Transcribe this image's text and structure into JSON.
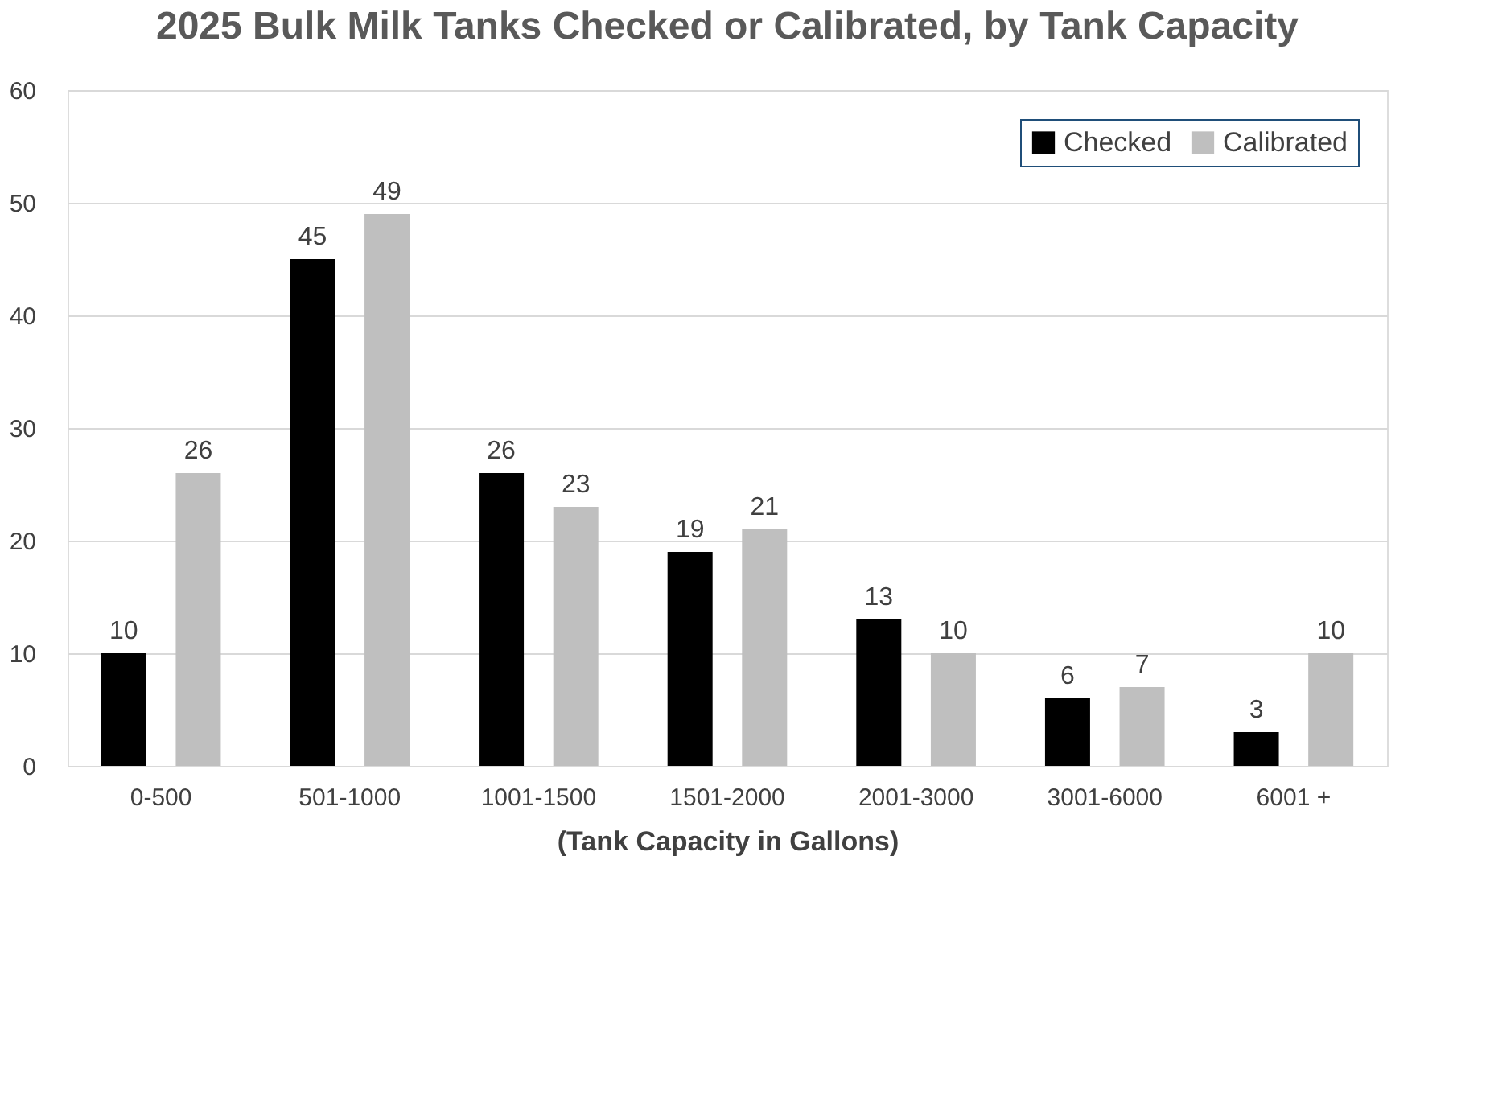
{
  "chart_data": {
    "type": "bar",
    "title": "2025 Bulk Milk Tanks Checked or Calibrated, by Tank Capacity",
    "xlabel": "(Tank Capacity in Gallons)",
    "categories": [
      "0-500",
      "501-1000",
      "1001-1500",
      "1501-2000",
      "2001-3000",
      "3001-6000",
      "6001 +"
    ],
    "series": [
      {
        "name": "Checked",
        "color": "#000000",
        "values": [
          10,
          45,
          26,
          19,
          13,
          6,
          3
        ]
      },
      {
        "name": "Calibrated",
        "color": "#bfbfbf",
        "values": [
          26,
          49,
          23,
          21,
          10,
          7,
          10
        ]
      }
    ],
    "ylim": [
      0,
      60
    ],
    "yticks": [
      0,
      10,
      20,
      30,
      40,
      50,
      60
    ],
    "grid": "y",
    "legend": "top right",
    "data_labels": true
  }
}
